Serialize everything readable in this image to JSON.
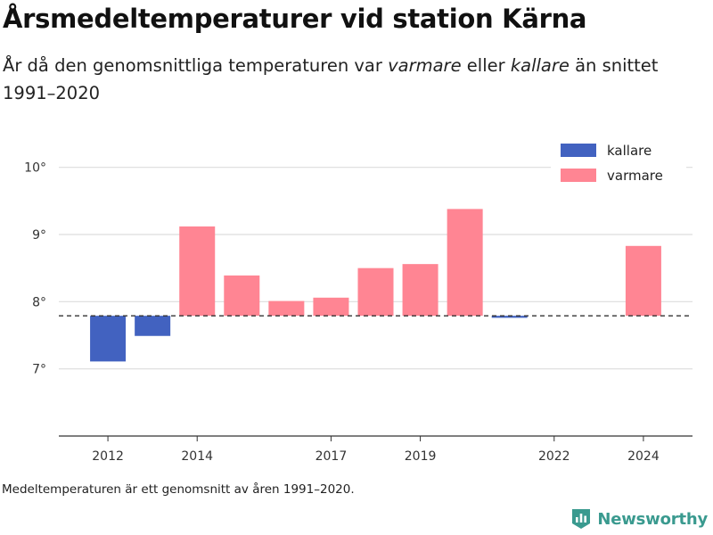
{
  "header": {
    "title": "Årsmedeltemperaturer vid station Kärna",
    "subtitle_parts": [
      "År då den genomsnittliga temperaturen var ",
      "varmare",
      " eller ",
      "kallare",
      " än snittet 1991–2020"
    ]
  },
  "footnote": "Medeltemperaturen är ett genomsnitt av åren 1991–2020.",
  "brand": {
    "name": "Newsworthy",
    "icon": "newsworthy-logo-icon",
    "color": "#3a9a8f"
  },
  "chart_data": {
    "type": "bar",
    "baseline": 7.79,
    "ylim": [
      6.0,
      10.5
    ],
    "xlim": [
      2010.9,
      2025.1
    ],
    "yticks": [
      7,
      8,
      9,
      10
    ],
    "ytick_labels": [
      "7°",
      "8°",
      "9°",
      "10°"
    ],
    "xticks": [
      2012,
      2014,
      2017,
      2019,
      2022,
      2024
    ],
    "xtick_labels": [
      "2012",
      "2014",
      "2017",
      "2019",
      "2022",
      "2024"
    ],
    "grid": true,
    "legend_position": "top-right",
    "colors": {
      "kallare": "#4262c0",
      "varmare": "#ff8593",
      "grid": "#dddddd",
      "baseline": "#333333",
      "axis": "#333333"
    },
    "series": [
      {
        "name": "kallare",
        "x": [
          2012,
          2013,
          2021
        ],
        "values": [
          7.11,
          7.49,
          7.76
        ]
      },
      {
        "name": "varmare",
        "x": [
          2014,
          2015,
          2016,
          2017,
          2018,
          2019,
          2020,
          2024
        ],
        "values": [
          9.12,
          8.39,
          8.01,
          8.06,
          8.5,
          8.56,
          9.38,
          8.83
        ]
      }
    ]
  }
}
